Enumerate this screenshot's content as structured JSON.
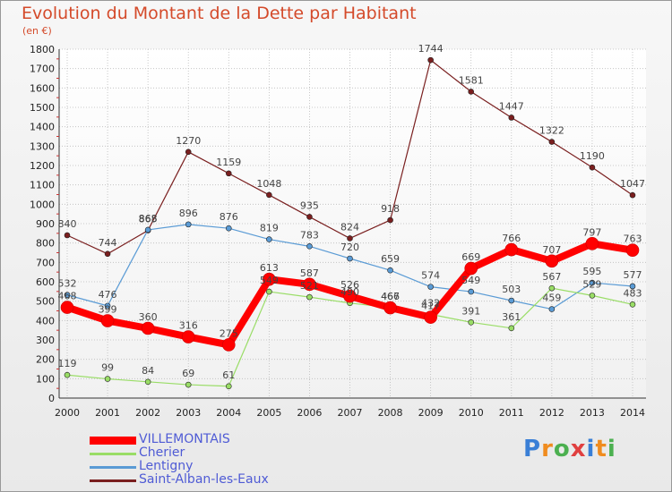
{
  "header": {
    "title": "Evolution du Montant de la Dette par Habitant",
    "subtitle": "(en €)"
  },
  "logo": {
    "letters": [
      "P",
      "r",
      "o",
      "x",
      "i",
      "t",
      "i"
    ],
    "colors": [
      "#3a7fd6",
      "#f08c1f",
      "#4cb050",
      "#e04040",
      "#3a7fd6",
      "#f08c1f",
      "#4cb050"
    ]
  },
  "chart_data": {
    "type": "line",
    "title": "Evolution du Montant de la Dette par Habitant",
    "subtitle": "(en €)",
    "xlabel": "",
    "ylabel": "",
    "categories": [
      "2000",
      "2001",
      "2002",
      "2003",
      "2004",
      "2005",
      "2006",
      "2007",
      "2008",
      "2009",
      "2010",
      "2011",
      "2012",
      "2013",
      "2014"
    ],
    "ylim": [
      0,
      1800
    ],
    "yticks": [
      0,
      100,
      200,
      300,
      400,
      500,
      600,
      700,
      800,
      900,
      1000,
      1100,
      1200,
      1300,
      1400,
      1500,
      1600,
      1700,
      1800
    ],
    "grid": true,
    "legend_position": "bottom-left",
    "series": [
      {
        "name": "Saint-Alban-les-Eaux",
        "color": "#7a1f1f",
        "width": 1.2,
        "marker": 3,
        "values": [
          840,
          744,
          865,
          1270,
          1159,
          1048,
          935,
          824,
          918,
          1744,
          1581,
          1447,
          1322,
          1190,
          1047
        ]
      },
      {
        "name": "Lentigny",
        "color": "#5a9bd5",
        "width": 1.2,
        "marker": 3,
        "values": [
          532,
          476,
          868,
          896,
          876,
          819,
          783,
          720,
          659,
          574,
          549,
          503,
          459,
          595,
          577
        ]
      },
      {
        "name": "Cherier",
        "color": "#99dd66",
        "width": 1.2,
        "marker": 3,
        "values": [
          119,
          99,
          84,
          69,
          61,
          549,
          521,
          490,
          467,
          432,
          391,
          361,
          567,
          529,
          483
        ]
      },
      {
        "name": "VILLEMONTAIS",
        "color": "#ff0000",
        "width": 8,
        "marker": 7,
        "values": [
          468,
          399,
          360,
          316,
          275,
          613,
          587,
          526,
          466,
          417,
          669,
          766,
          707,
          797,
          763
        ]
      }
    ]
  }
}
